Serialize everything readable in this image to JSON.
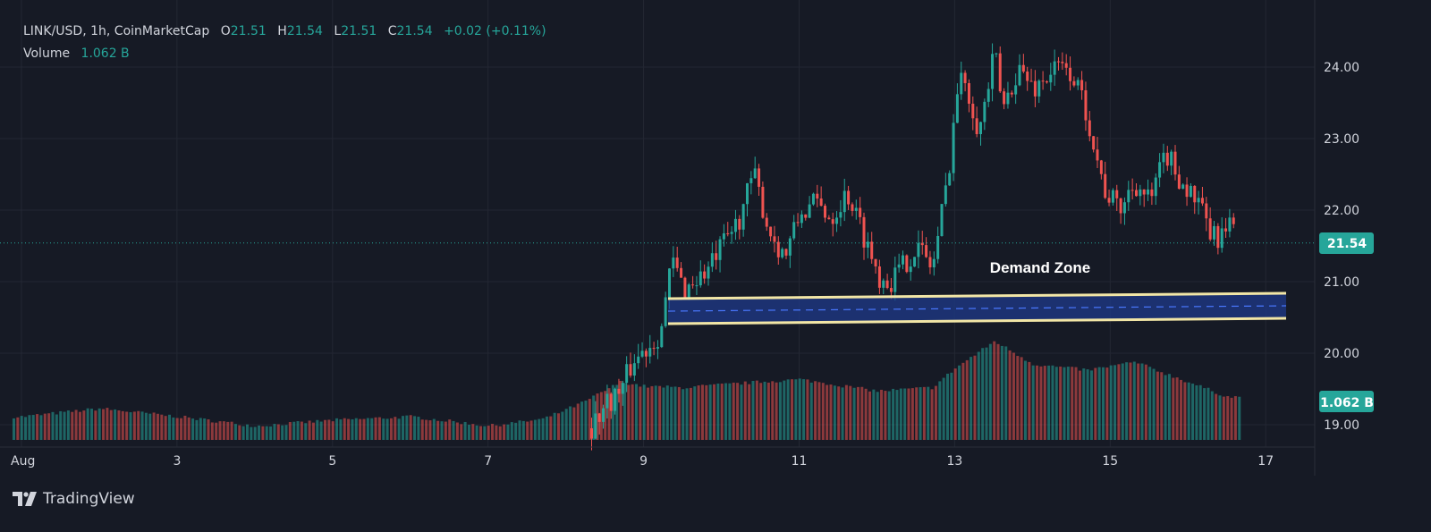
{
  "header": {
    "symbol": "LINK/USD, 1h, CoinMarketCap",
    "open_label": "O",
    "open": "21.51",
    "high_label": "H",
    "high": "21.54",
    "low_label": "L",
    "low": "21.51",
    "close_label": "C",
    "close": "21.54",
    "change": "+0.02 (+0.11%)",
    "volume_label": "Volume",
    "volume": "1.062 B"
  },
  "brand": {
    "name": "TradingView"
  },
  "colors": {
    "background": "#161a25",
    "up": "#26a69a",
    "down": "#ef5350",
    "zone_fill": "#1f3a8a",
    "zone_border": "#f2e6a6",
    "text": "#d1d4dc"
  },
  "chart_data": {
    "type": "candlestick",
    "price_axis": {
      "ticks": [
        19.0,
        20.0,
        21.0,
        22.0,
        23.0,
        24.0
      ],
      "ylim": [
        18.75,
        24.75
      ]
    },
    "time_axis": {
      "ticks": [
        "Aug",
        "3",
        "5",
        "7",
        "9",
        "11",
        "13",
        "15",
        "17"
      ]
    },
    "last_price_label": "21.54",
    "volume_label": "1.062 B",
    "annotation": {
      "text": "Demand Zone",
      "zone_low": 20.45,
      "zone_high": 20.8
    },
    "price_path": [
      [
        8.3,
        18.95
      ],
      [
        8.5,
        19.3
      ],
      [
        8.7,
        19.5
      ],
      [
        8.85,
        19.9
      ],
      [
        9.0,
        20.05
      ],
      [
        9.2,
        20.3
      ],
      [
        9.35,
        21.3
      ],
      [
        9.5,
        20.9
      ],
      [
        9.8,
        21.15
      ],
      [
        10.0,
        21.5
      ],
      [
        10.2,
        21.85
      ],
      [
        10.4,
        22.5
      ],
      [
        10.6,
        21.7
      ],
      [
        10.8,
        21.35
      ],
      [
        11.0,
        21.95
      ],
      [
        11.2,
        22.1
      ],
      [
        11.4,
        21.9
      ],
      [
        11.6,
        22.25
      ],
      [
        11.8,
        21.7
      ],
      [
        12.0,
        21.1
      ],
      [
        12.15,
        21.0
      ],
      [
        12.3,
        21.2
      ],
      [
        12.5,
        21.5
      ],
      [
        12.7,
        21.2
      ],
      [
        12.9,
        22.5
      ],
      [
        13.0,
        23.6
      ],
      [
        13.1,
        23.9
      ],
      [
        13.3,
        23.1
      ],
      [
        13.5,
        24.2
      ],
      [
        13.6,
        23.4
      ],
      [
        13.8,
        24.0
      ],
      [
        14.0,
        23.7
      ],
      [
        14.3,
        24.0
      ],
      [
        14.5,
        23.9
      ],
      [
        14.7,
        23.3
      ],
      [
        14.9,
        22.3
      ],
      [
        15.1,
        22.0
      ],
      [
        15.3,
        22.4
      ],
      [
        15.5,
        22.1
      ],
      [
        15.7,
        22.8
      ],
      [
        15.9,
        22.4
      ],
      [
        16.1,
        22.1
      ],
      [
        16.3,
        21.6
      ],
      [
        16.5,
        21.7
      ],
      [
        16.7,
        22.0
      ],
      [
        16.9,
        21.7
      ],
      [
        17.1,
        21.54
      ]
    ],
    "volume_path": [
      [
        1.0,
        0.2
      ],
      [
        2.0,
        0.27
      ],
      [
        3.0,
        0.2
      ],
      [
        4.0,
        0.12
      ],
      [
        5.0,
        0.17
      ],
      [
        6.0,
        0.2
      ],
      [
        7.0,
        0.12
      ],
      [
        7.7,
        0.18
      ],
      [
        8.2,
        0.32
      ],
      [
        8.7,
        0.5
      ],
      [
        9.0,
        0.46
      ],
      [
        9.5,
        0.45
      ],
      [
        10.5,
        0.5
      ],
      [
        11.0,
        0.52
      ],
      [
        12.0,
        0.42
      ],
      [
        12.7,
        0.45
      ],
      [
        13.0,
        0.62
      ],
      [
        13.5,
        0.85
      ],
      [
        14.0,
        0.65
      ],
      [
        14.7,
        0.6
      ],
      [
        15.3,
        0.67
      ],
      [
        15.9,
        0.52
      ],
      [
        16.5,
        0.37
      ],
      [
        17.1,
        0.36
      ]
    ]
  }
}
